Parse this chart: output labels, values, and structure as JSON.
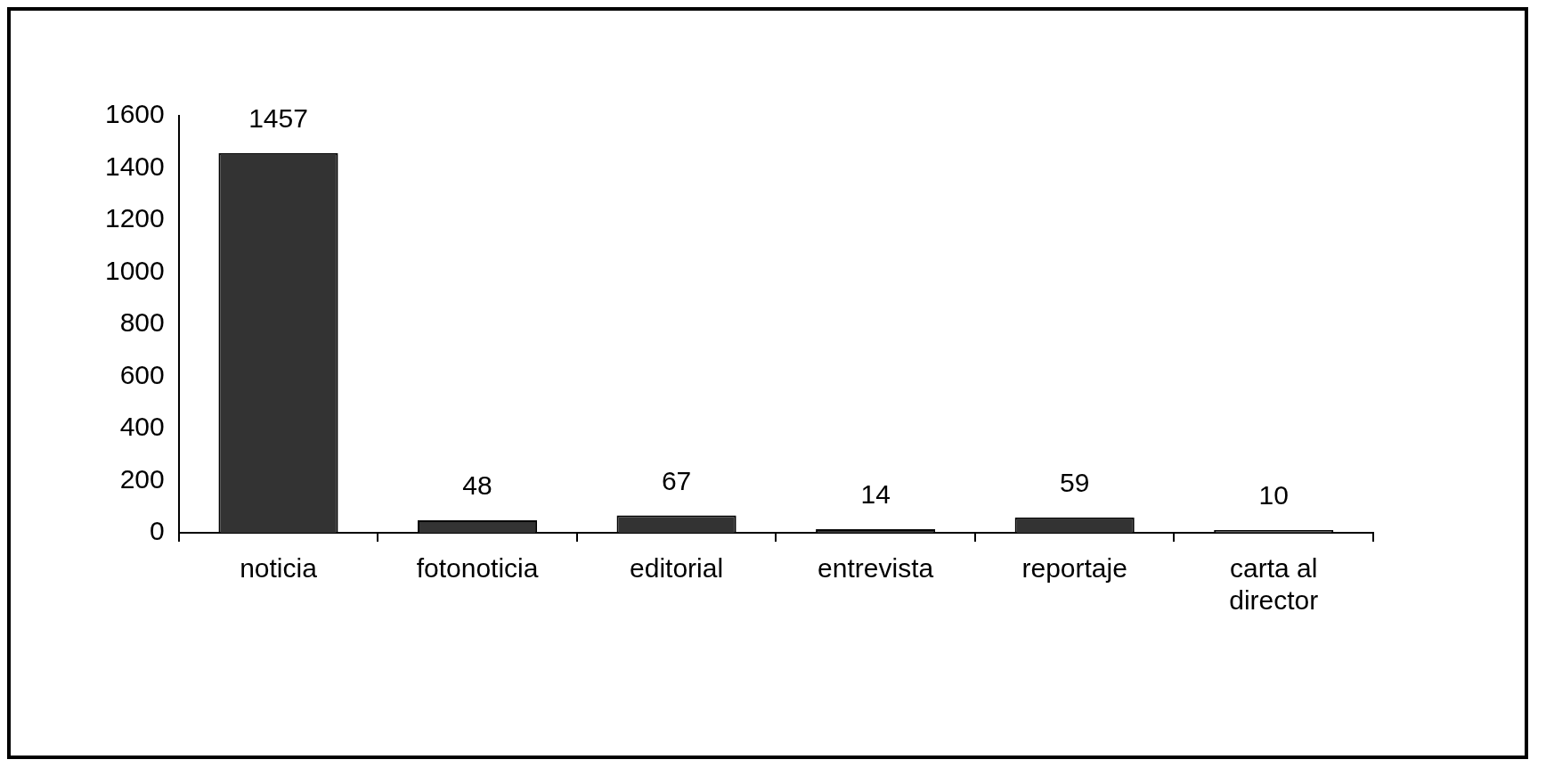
{
  "chart_data": {
    "type": "bar",
    "categories": [
      "noticia",
      "fotonoticia",
      "editorial",
      "entrevista",
      "reportaje",
      "carta al director"
    ],
    "values": [
      1457,
      48,
      67,
      14,
      59,
      10
    ],
    "color": "#333333",
    "ylim": [
      0,
      1600
    ],
    "yticks": [
      0,
      200,
      400,
      600,
      800,
      1000,
      1200,
      1400,
      1600
    ],
    "data_labels": true
  }
}
